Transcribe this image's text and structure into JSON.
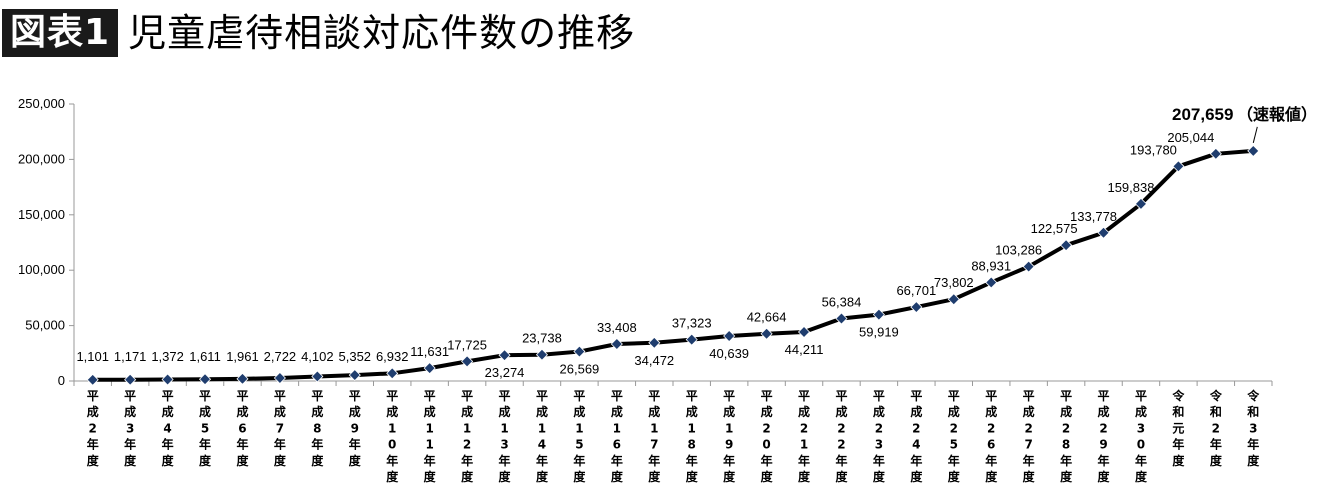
{
  "header": {
    "badge": "図表1",
    "title": "児童虐待相談対応件数の推移"
  },
  "chart_data": {
    "type": "line",
    "title": "児童虐待相談対応件数の推移",
    "xlabel": "",
    "ylabel": "",
    "ylim": [
      0,
      250000
    ],
    "yticks": [
      "0",
      "50,000",
      "100,000",
      "150,000",
      "200,000",
      "250,000"
    ],
    "grid": false,
    "line_color": "#000000",
    "marker_color": "#1f3d6e",
    "categories": [
      "平成2年度",
      "平成3年度",
      "平成4年度",
      "平成5年度",
      "平成6年度",
      "平成7年度",
      "平成8年度",
      "平成9年度",
      "平成10年度",
      "平成11年度",
      "平成12年度",
      "平成13年度",
      "平成14年度",
      "平成15年度",
      "平成16年度",
      "平成17年度",
      "平成18年度",
      "平成19年度",
      "平成20年度",
      "平成21年度",
      "平成22年度",
      "平成23年度",
      "平成24年度",
      "平成25年度",
      "平成26年度",
      "平成27年度",
      "平成28年度",
      "平成29年度",
      "平成30年度",
      "令和元年度",
      "令和2年度",
      "令和3年度"
    ],
    "values": [
      1101,
      1171,
      1372,
      1611,
      1961,
      2722,
      4102,
      5352,
      6932,
      11631,
      17725,
      23274,
      23738,
      26569,
      33408,
      34472,
      37323,
      40639,
      42664,
      44211,
      56384,
      59919,
      66701,
      73802,
      88931,
      103286,
      122575,
      133778,
      159838,
      193780,
      205044,
      207659
    ],
    "data_labels": [
      "1,101",
      "1,171",
      "1,372",
      "1,611",
      "1,961",
      "2,722",
      "4,102",
      "5,352",
      "6,932",
      "11,631",
      "17,725",
      "23,274",
      "23,738",
      "26,569",
      "33,408",
      "34,472",
      "37,323",
      "40,639",
      "42,664",
      "44,211",
      "56,384",
      "59,919",
      "66,701",
      "73,802",
      "88,931",
      "103,286",
      "122,575",
      "133,778",
      "159,838",
      "193,780",
      "205,044",
      "207,659"
    ],
    "annotation": "（速報値）"
  }
}
